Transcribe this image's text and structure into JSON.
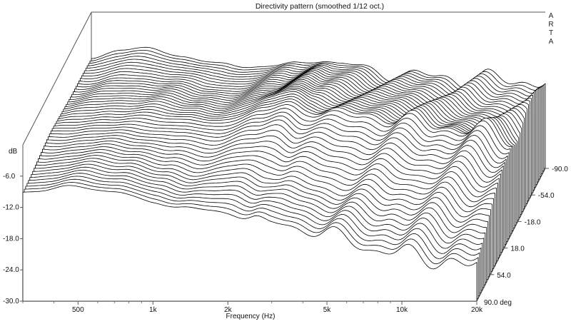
{
  "chart_data": {
    "type": "line",
    "subtype": "3d-waterfall",
    "title": "Directivity pattern (smoothed 1/12 oct.)",
    "brand": [
      "A",
      "R",
      "T",
      "A"
    ],
    "xlabel": "Frequency (Hz)",
    "ylabel": "dB",
    "x_scale": "log",
    "xlim": [
      300,
      20000
    ],
    "ylim": [
      -30,
      0
    ],
    "x_ticks": [
      "500",
      "1k",
      "2k",
      "5k",
      "10k",
      "20k"
    ],
    "y_ticks": [
      "-6.0",
      "-12.0",
      "-18.0",
      "-24.0",
      "-30.0"
    ],
    "z_label": "90.0 deg",
    "z_ticks": [
      "-90.0",
      "-54.0",
      "-18.0",
      "18.0",
      "54.0"
    ],
    "z_range": [
      -90,
      90
    ],
    "grid": false,
    "series_count": 50,
    "series": [
      {
        "angle": -90,
        "points": [
          [
            300,
            -9
          ],
          [
            400,
            -7
          ],
          [
            500,
            -7
          ],
          [
            700,
            -8.5
          ],
          [
            1000,
            -10
          ],
          [
            1300,
            -10.5
          ],
          [
            2000,
            -10
          ],
          [
            2500,
            -9
          ],
          [
            3000,
            -10
          ],
          [
            5000,
            -12
          ],
          [
            8000,
            -12.5
          ],
          [
            10000,
            -13
          ],
          [
            15000,
            -13
          ],
          [
            20000,
            -13
          ]
        ]
      },
      {
        "angle": -54,
        "points": [
          [
            300,
            -8.5
          ],
          [
            500,
            -7.5
          ],
          [
            700,
            -8
          ],
          [
            1000,
            -9.5
          ],
          [
            1300,
            -10
          ],
          [
            2000,
            -8
          ],
          [
            2500,
            -7
          ],
          [
            3000,
            -8.5
          ],
          [
            5000,
            -10
          ],
          [
            8000,
            -11
          ],
          [
            10000,
            -12
          ],
          [
            15000,
            -13
          ],
          [
            20000,
            -14
          ]
        ]
      },
      {
        "angle": -18,
        "points": [
          [
            300,
            -8
          ],
          [
            500,
            -7
          ],
          [
            700,
            -7
          ],
          [
            1000,
            -8
          ],
          [
            1300,
            -9
          ],
          [
            2000,
            -6
          ],
          [
            2500,
            -5
          ],
          [
            3000,
            -7
          ],
          [
            5000,
            -8
          ],
          [
            8000,
            -9
          ],
          [
            10000,
            -10
          ],
          [
            15000,
            -12
          ],
          [
            20000,
            -13
          ]
        ]
      },
      {
        "angle": 0,
        "points": [
          [
            300,
            -8
          ],
          [
            500,
            -7
          ],
          [
            700,
            -7
          ],
          [
            1000,
            -7.5
          ],
          [
            1300,
            -8.5
          ],
          [
            2000,
            -6
          ],
          [
            2500,
            -5
          ],
          [
            3000,
            -6
          ],
          [
            5000,
            -7
          ],
          [
            8000,
            -8
          ],
          [
            10000,
            -9
          ],
          [
            15000,
            -10
          ],
          [
            20000,
            -11
          ]
        ]
      },
      {
        "angle": 18,
        "points": [
          [
            300,
            -8
          ],
          [
            500,
            -7
          ],
          [
            700,
            -7.5
          ],
          [
            1000,
            -8
          ],
          [
            1300,
            -9
          ],
          [
            2000,
            -7
          ],
          [
            2500,
            -6
          ],
          [
            3000,
            -7.5
          ],
          [
            5000,
            -9
          ],
          [
            8000,
            -10
          ],
          [
            10000,
            -11
          ],
          [
            15000,
            -12
          ],
          [
            20000,
            -13
          ]
        ]
      },
      {
        "angle": 54,
        "points": [
          [
            300,
            -8.5
          ],
          [
            500,
            -7.5
          ],
          [
            700,
            -8
          ],
          [
            1000,
            -10
          ],
          [
            1300,
            -11
          ],
          [
            2000,
            -10
          ],
          [
            2500,
            -11
          ],
          [
            3000,
            -12
          ],
          [
            5000,
            -14
          ],
          [
            8000,
            -15
          ],
          [
            10000,
            -16
          ],
          [
            15000,
            -17
          ],
          [
            20000,
            -18
          ]
        ]
      },
      {
        "angle": 90,
        "points": [
          [
            300,
            -9
          ],
          [
            500,
            -8
          ],
          [
            700,
            -9
          ],
          [
            1000,
            -11
          ],
          [
            1300,
            -12
          ],
          [
            2000,
            -13
          ],
          [
            2500,
            -14
          ],
          [
            3000,
            -15
          ],
          [
            5000,
            -17
          ],
          [
            8000,
            -20
          ],
          [
            10000,
            -21
          ],
          [
            15000,
            -22
          ],
          [
            20000,
            -24
          ]
        ]
      }
    ]
  }
}
